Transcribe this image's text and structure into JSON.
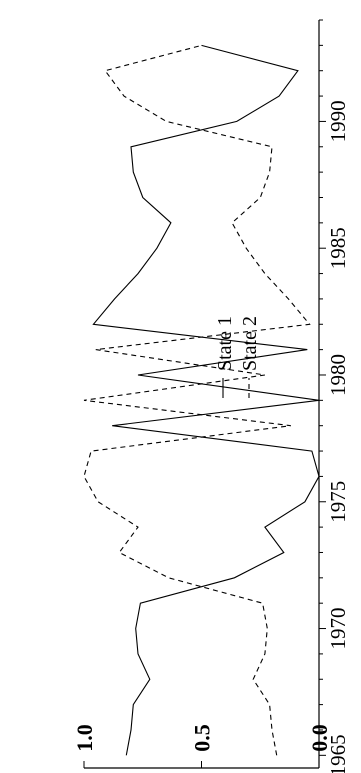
{
  "chart_data": {
    "type": "line",
    "rotated": true,
    "x": [
      1965,
      1966,
      1967,
      1968,
      1969,
      1970,
      1971,
      1972,
      1973,
      1974,
      1975,
      1976,
      1977,
      1978,
      1979,
      1980,
      1981,
      1982,
      1983,
      1984,
      1985,
      1986,
      1987,
      1988,
      1989,
      1990,
      1991,
      1992,
      1993
    ],
    "series": [
      {
        "name": "State 1",
        "style": "solid",
        "values": [
          0.82,
          0.8,
          0.79,
          0.72,
          0.77,
          0.78,
          0.76,
          0.36,
          0.15,
          0.23,
          0.06,
          0.0,
          0.03,
          0.88,
          0.0,
          0.77,
          0.05,
          0.96,
          0.87,
          0.77,
          0.69,
          0.63,
          0.75,
          0.79,
          0.8,
          0.35,
          0.17,
          0.09,
          0.5
        ]
      },
      {
        "name": "State 2",
        "style": "dashed",
        "values": [
          0.18,
          0.2,
          0.21,
          0.28,
          0.23,
          0.22,
          0.24,
          0.64,
          0.85,
          0.77,
          0.94,
          1.0,
          0.97,
          0.12,
          1.0,
          0.23,
          0.95,
          0.04,
          0.13,
          0.23,
          0.31,
          0.37,
          0.25,
          0.21,
          0.2,
          0.65,
          0.83,
          0.91,
          0.5
        ]
      }
    ],
    "x_ticks": [
      "1965",
      "1970",
      "1975",
      "1980",
      "1985",
      "1990"
    ],
    "y_ticks": [
      "0.0",
      "0.5",
      "1.0"
    ],
    "xlim": [
      1964.5,
      1994.0
    ],
    "ylim": [
      0,
      1
    ],
    "legend": {
      "placement": "top",
      "entries": [
        "State 1",
        "State 2"
      ]
    },
    "grid": false
  }
}
